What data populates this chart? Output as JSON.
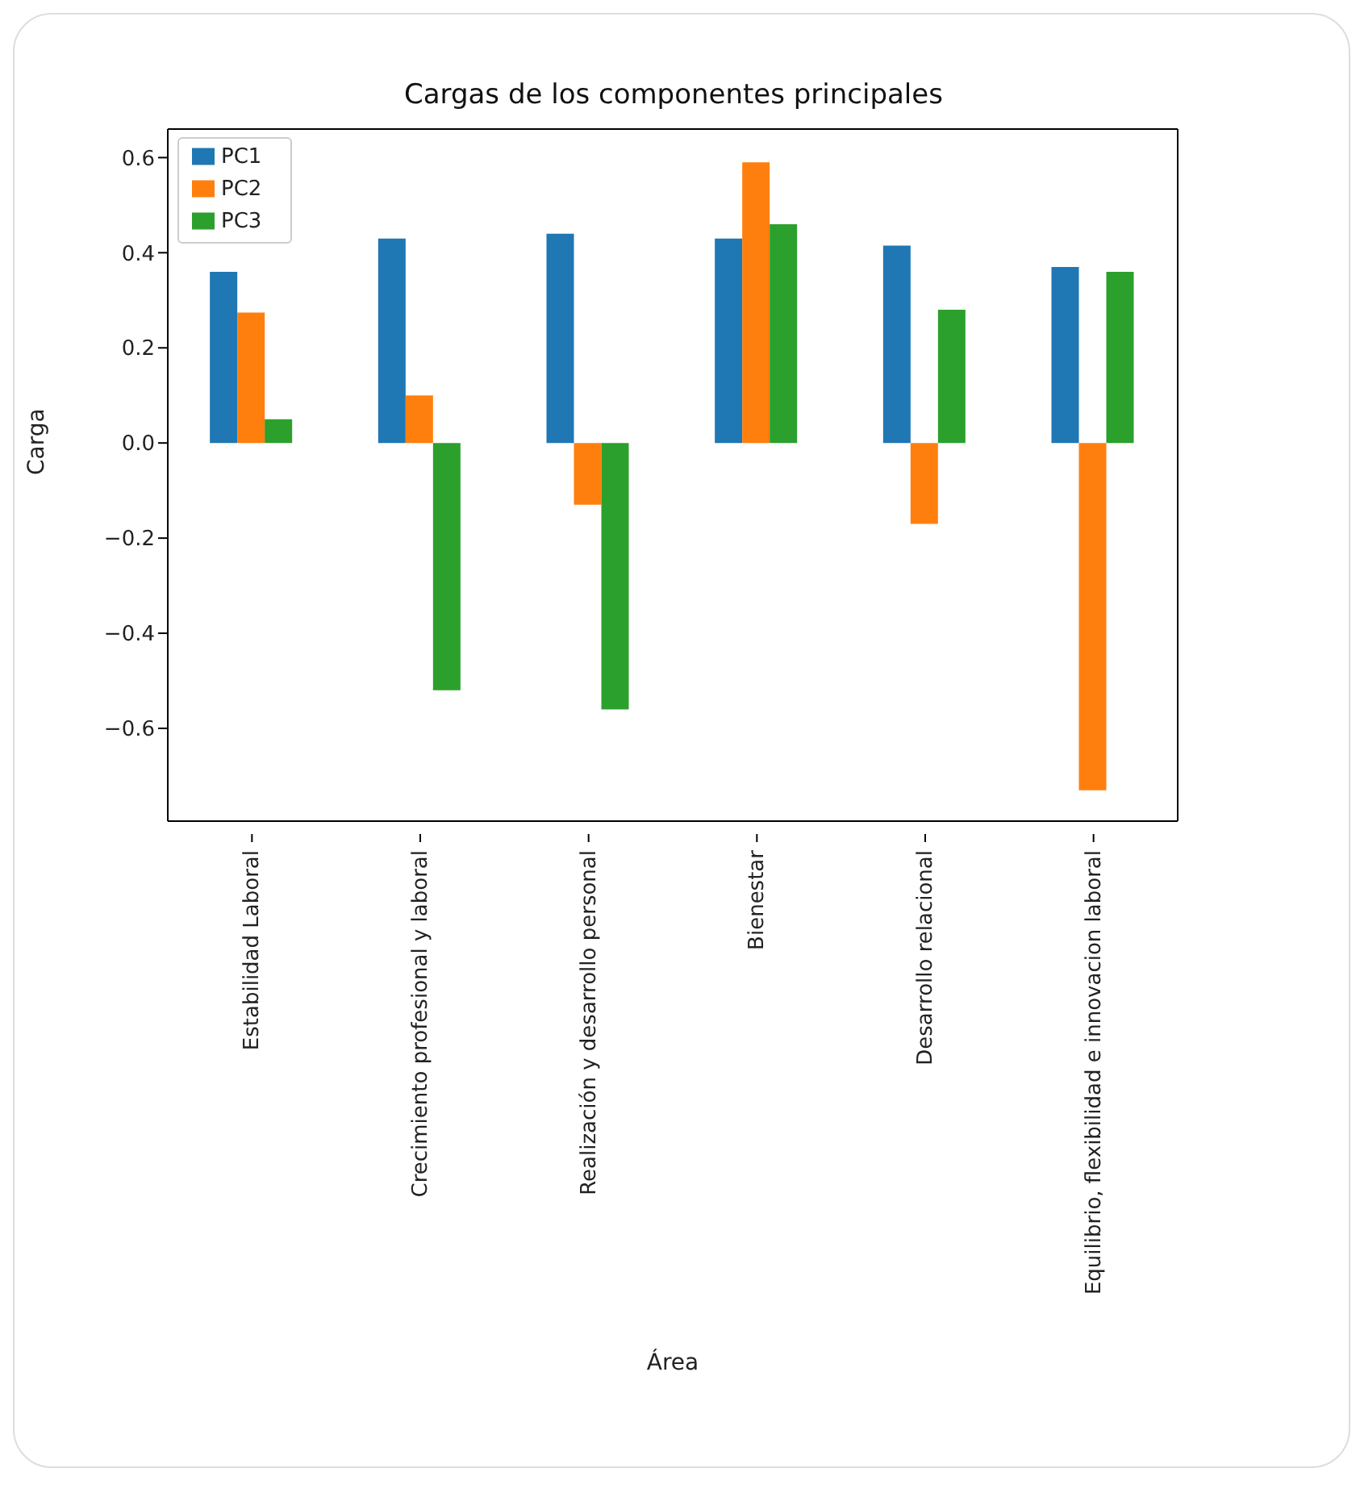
{
  "chart_data": {
    "type": "bar",
    "title": "Cargas de los componentes principales",
    "xlabel": "Área",
    "ylabel": "Carga",
    "categories": [
      "Estabilidad Laboral",
      "Crecimiento profesional y laboral",
      "Realización y desarrollo personal",
      "Bienestar",
      "Desarrollo relacional",
      "Equilibrio, flexibilidad e innovacion laboral"
    ],
    "series": [
      {
        "name": "PC1",
        "color": "#1f77b4",
        "values": [
          0.36,
          0.43,
          0.44,
          0.43,
          0.415,
          0.37
        ]
      },
      {
        "name": "PC2",
        "color": "#ff7f0e",
        "values": [
          0.274,
          0.1,
          -0.13,
          0.59,
          -0.17,
          -0.73
        ]
      },
      {
        "name": "PC3",
        "color": "#2ca02c",
        "values": [
          0.05,
          -0.52,
          -0.56,
          0.46,
          0.28,
          0.36
        ]
      }
    ],
    "ylim": [
      -0.795,
      0.66
    ],
    "yticks": [
      {
        "value": -0.6,
        "label": "−0.6"
      },
      {
        "value": -0.4,
        "label": "−0.4"
      },
      {
        "value": -0.2,
        "label": "−0.2"
      },
      {
        "value": 0,
        "label": "0.0"
      },
      {
        "value": 0.2,
        "label": "0.2"
      },
      {
        "value": 0.4,
        "label": "0.4"
      },
      {
        "value": 0.6,
        "label": "0.6"
      }
    ],
    "grid": false,
    "legend": "top left"
  }
}
